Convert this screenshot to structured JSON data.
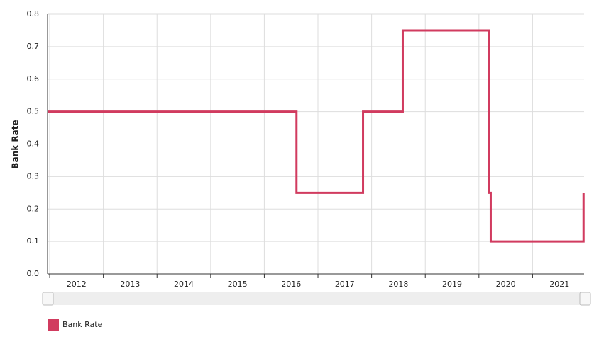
{
  "chart_data": {
    "type": "step-line",
    "y_label": "Bank Rate",
    "x": [
      2011.96,
      2016.6,
      2017.84,
      2018.58,
      2020.19,
      2020.22,
      2021.95
    ],
    "series": [
      {
        "name": "Bank Rate",
        "color": "#d13b5f",
        "values": [
          0.5,
          0.25,
          0.5,
          0.75,
          0.25,
          0.1,
          0.25
        ]
      }
    ],
    "xlim": [
      2011.96,
      2021.96
    ],
    "xticks": [
      2012,
      2013,
      2014,
      2015,
      2016,
      2017,
      2018,
      2019,
      2020,
      2021
    ],
    "ylim": [
      0,
      0.8
    ],
    "yticks": [
      {
        "value": 0,
        "label": "0.0"
      },
      0.1,
      0.2,
      0.3,
      0.4,
      0.5,
      0.6,
      0.7,
      0.8
    ],
    "grid": true
  }
}
